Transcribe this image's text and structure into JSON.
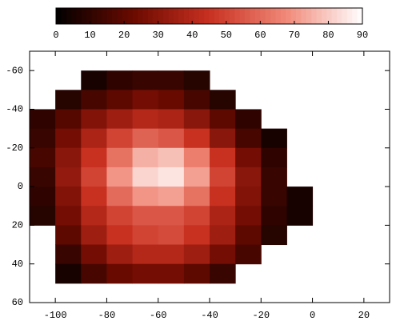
{
  "chart_data": {
    "type": "heatmap",
    "x": [
      -110,
      -100,
      -90,
      -80,
      -70,
      -60,
      -50,
      -40,
      -30,
      -20,
      -10,
      0,
      10,
      20
    ],
    "y": [
      -60,
      -50,
      -40,
      -30,
      -20,
      -10,
      0,
      10,
      20,
      30,
      40,
      50
    ],
    "z": [
      [
        null,
        null,
        5,
        10,
        12,
        12,
        8,
        null,
        null,
        null,
        null,
        null,
        null
      ],
      [
        null,
        8,
        15,
        20,
        25,
        22,
        15,
        8,
        null,
        null,
        null,
        null,
        null
      ],
      [
        10,
        18,
        28,
        35,
        40,
        38,
        30,
        20,
        10,
        null,
        null,
        null,
        null
      ],
      [
        12,
        25,
        38,
        50,
        58,
        55,
        45,
        30,
        15,
        5,
        null,
        null,
        null
      ],
      [
        15,
        30,
        45,
        62,
        75,
        78,
        65,
        45,
        25,
        10,
        null,
        null,
        null
      ],
      [
        12,
        32,
        50,
        70,
        82,
        85,
        72,
        50,
        30,
        12,
        null,
        null,
        null
      ],
      [
        10,
        28,
        45,
        60,
        70,
        72,
        62,
        45,
        28,
        12,
        5,
        null,
        null
      ],
      [
        8,
        25,
        40,
        50,
        55,
        55,
        50,
        38,
        25,
        10,
        5,
        null,
        null
      ],
      [
        null,
        20,
        35,
        45,
        50,
        52,
        45,
        35,
        20,
        8,
        null,
        null,
        null
      ],
      [
        null,
        12,
        25,
        35,
        40,
        40,
        35,
        25,
        15,
        null,
        null,
        null,
        null
      ],
      [
        null,
        5,
        15,
        22,
        25,
        25,
        20,
        12,
        null,
        null,
        null,
        null,
        null
      ]
    ],
    "xlim": [
      -110,
      30
    ],
    "xticks": [
      -100,
      -80,
      -60,
      -40,
      -20,
      0,
      20
    ],
    "ylim": [
      -70,
      60
    ],
    "yticks": [
      -60,
      -40,
      -20,
      0,
      20,
      40,
      60
    ],
    "y_reversed": true,
    "clim": [
      0,
      90
    ],
    "cticks": [
      0,
      10,
      20,
      30,
      40,
      50,
      60,
      70,
      80,
      90
    ],
    "colormap": [
      "#000000",
      "#6a0a00",
      "#c83020",
      "#f08878",
      "#ffffff"
    ]
  }
}
